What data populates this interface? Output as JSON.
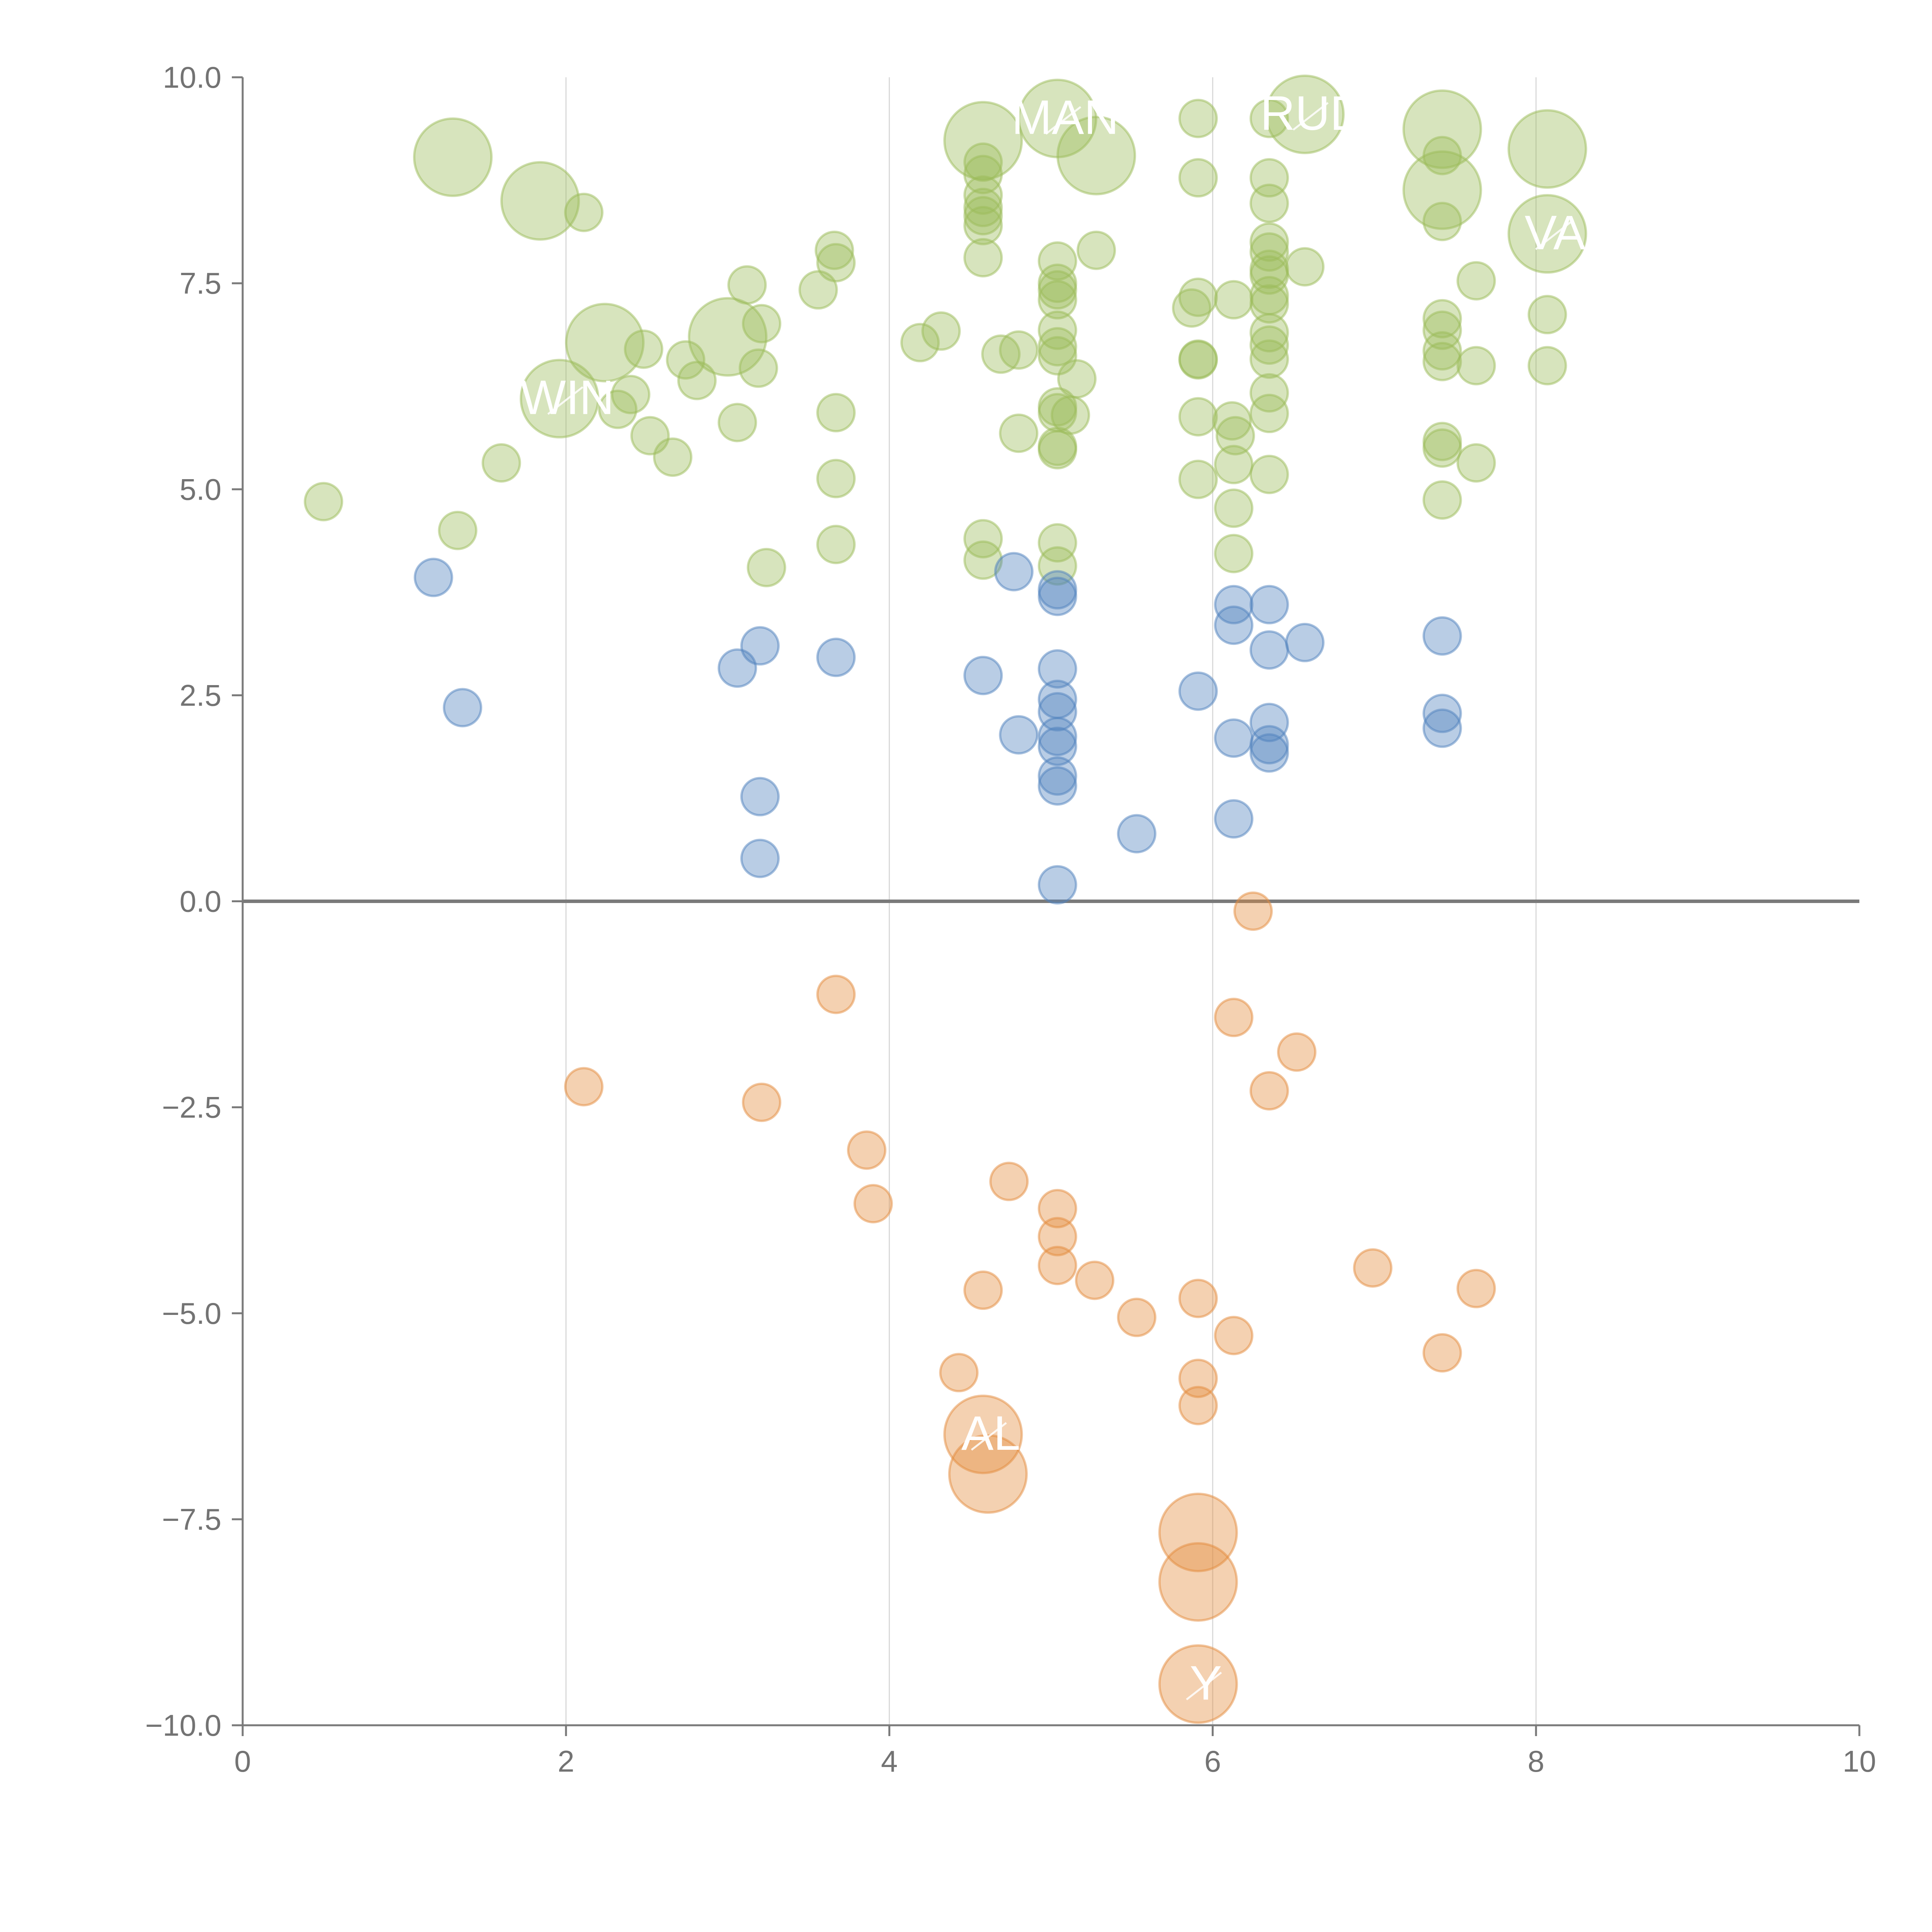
{
  "chart_data": {
    "type": "scatter",
    "title": "",
    "xlabel": "",
    "ylabel": "",
    "xlim": [
      0,
      10
    ],
    "ylim": [
      -10,
      10
    ],
    "x_ticks": [
      0,
      2,
      4,
      6,
      8,
      10
    ],
    "x_tick_labels": [
      "0",
      "2",
      "4",
      "6",
      "8",
      "10"
    ],
    "y_ticks": [
      -10,
      -7.5,
      -5,
      -2.5,
      0,
      2.5,
      5,
      7.5,
      10
    ],
    "y_tick_labels": [
      "−10.0",
      "−7.5",
      "−5.0",
      "−2.5",
      "0.0",
      "2.5",
      "5.0",
      "7.5",
      "10.0"
    ],
    "vertical_grid_at": [
      2,
      4,
      6,
      8
    ],
    "zero_line": true,
    "colors": {
      "green": "#9bbb59",
      "blue": "#4f81bd",
      "orange": "#e48b3d",
      "axis": "#7a7a7a",
      "grid": "#d9d9d9",
      "label": "#ffffff"
    },
    "series": [
      {
        "name": "green",
        "color": "#9bbb59",
        "points": [
          [
            0.5,
            4.85,
            1
          ],
          [
            1.33,
            4.5,
            1
          ],
          [
            1.6,
            5.32,
            1
          ],
          [
            1.3,
            9.03,
            2
          ],
          [
            1.84,
            8.5,
            2
          ],
          [
            2.11,
            8.36,
            1
          ],
          [
            2.24,
            6.78,
            2
          ],
          [
            1.96,
            6.1,
            2
          ],
          [
            2.32,
            5.97,
            1
          ],
          [
            2.4,
            6.15,
            1
          ],
          [
            2.48,
            6.7,
            1
          ],
          [
            2.52,
            5.65,
            1
          ],
          [
            2.66,
            5.39,
            1
          ],
          [
            2.74,
            6.57,
            1
          ],
          [
            2.81,
            6.32,
            1
          ],
          [
            3.0,
            6.85,
            2
          ],
          [
            3.06,
            5.81,
            1
          ],
          [
            3.12,
            7.48,
            1
          ],
          [
            3.19,
            6.47,
            1
          ],
          [
            3.21,
            7.01,
            1
          ],
          [
            3.24,
            4.05,
            1
          ],
          [
            3.56,
            7.42,
            1
          ],
          [
            3.66,
            7.9,
            1
          ],
          [
            3.67,
            7.75,
            1
          ],
          [
            3.67,
            5.93,
            1
          ],
          [
            3.67,
            5.13,
            1
          ],
          [
            3.67,
            4.33,
            1
          ],
          [
            4.19,
            6.78,
            1
          ],
          [
            4.32,
            6.92,
            1
          ],
          [
            4.58,
            9.23,
            2
          ],
          [
            4.58,
            8.97,
            1
          ],
          [
            4.58,
            8.82,
            1
          ],
          [
            4.58,
            8.57,
            1
          ],
          [
            4.58,
            8.42,
            1
          ],
          [
            4.58,
            8.32,
            1
          ],
          [
            4.58,
            8.2,
            1
          ],
          [
            4.58,
            7.81,
            1
          ],
          [
            4.58,
            4.4,
            1
          ],
          [
            4.58,
            4.14,
            1
          ],
          [
            4.69,
            6.64,
            1
          ],
          [
            4.8,
            6.69,
            1
          ],
          [
            4.8,
            5.68,
            1
          ],
          [
            5.04,
            9.5,
            2
          ],
          [
            5.28,
            9.05,
            2
          ],
          [
            5.04,
            7.77,
            1
          ],
          [
            5.04,
            7.5,
            1
          ],
          [
            5.04,
            7.42,
            1
          ],
          [
            5.04,
            7.3,
            1
          ],
          [
            5.04,
            6.93,
            1
          ],
          [
            5.04,
            6.73,
            1
          ],
          [
            5.04,
            6.62,
            1
          ],
          [
            5.04,
            6.0,
            1
          ],
          [
            5.04,
            5.93,
            1
          ],
          [
            5.12,
            5.9,
            1
          ],
          [
            5.04,
            5.52,
            1
          ],
          [
            5.04,
            5.48,
            1
          ],
          [
            5.16,
            6.34,
            1
          ],
          [
            5.28,
            7.9,
            1
          ],
          [
            5.04,
            4.35,
            1
          ],
          [
            5.04,
            4.07,
            1
          ],
          [
            5.91,
            9.5,
            1
          ],
          [
            5.91,
            8.78,
            1
          ],
          [
            5.91,
            7.33,
            1
          ],
          [
            5.87,
            7.2,
            1
          ],
          [
            5.91,
            6.58,
            1
          ],
          [
            5.91,
            6.57,
            1
          ],
          [
            5.91,
            5.88,
            1
          ],
          [
            5.91,
            5.12,
            1
          ],
          [
            6.13,
            7.3,
            1
          ],
          [
            6.12,
            5.83,
            1
          ],
          [
            6.14,
            5.65,
            1
          ],
          [
            6.13,
            5.3,
            1
          ],
          [
            6.13,
            4.77,
            1
          ],
          [
            6.13,
            4.22,
            1
          ],
          [
            6.35,
            9.5,
            1
          ],
          [
            6.35,
            8.78,
            1
          ],
          [
            6.35,
            8.47,
            1
          ],
          [
            6.35,
            8.0,
            1
          ],
          [
            6.35,
            7.88,
            1
          ],
          [
            6.35,
            7.67,
            1
          ],
          [
            6.35,
            7.6,
            1
          ],
          [
            6.35,
            7.35,
            1
          ],
          [
            6.35,
            7.25,
            1
          ],
          [
            6.35,
            6.9,
            1
          ],
          [
            6.35,
            6.75,
            1
          ],
          [
            6.35,
            6.58,
            1
          ],
          [
            6.35,
            6.17,
            1
          ],
          [
            6.35,
            5.92,
            1
          ],
          [
            6.35,
            5.18,
            1
          ],
          [
            6.57,
            9.55,
            2
          ],
          [
            6.57,
            7.7,
            1
          ],
          [
            7.42,
            9.37,
            2
          ],
          [
            7.42,
            8.63,
            2
          ],
          [
            7.42,
            9.05,
            1
          ],
          [
            7.42,
            8.25,
            1
          ],
          [
            7.42,
            7.07,
            1
          ],
          [
            7.42,
            6.93,
            1
          ],
          [
            7.42,
            6.68,
            1
          ],
          [
            7.42,
            6.55,
            1
          ],
          [
            7.42,
            5.58,
            1
          ],
          [
            7.42,
            5.5,
            1
          ],
          [
            7.42,
            4.87,
            1
          ],
          [
            7.63,
            7.53,
            1
          ],
          [
            7.63,
            6.5,
            1
          ],
          [
            7.63,
            5.32,
            1
          ],
          [
            8.07,
            9.13,
            2
          ],
          [
            8.07,
            8.1,
            2
          ],
          [
            8.07,
            7.12,
            1
          ],
          [
            8.07,
            6.5,
            1
          ]
        ]
      },
      {
        "name": "blue",
        "color": "#4f81bd",
        "points": [
          [
            1.18,
            3.93,
            1
          ],
          [
            1.36,
            2.35,
            1
          ],
          [
            3.06,
            2.83,
            1
          ],
          [
            3.2,
            3.1,
            1
          ],
          [
            3.2,
            1.27,
            1
          ],
          [
            3.2,
            0.52,
            1
          ],
          [
            3.67,
            2.96,
            1
          ],
          [
            4.58,
            2.74,
            1
          ],
          [
            4.77,
            4.0,
            1
          ],
          [
            4.8,
            2.02,
            1
          ],
          [
            5.04,
            3.78,
            1
          ],
          [
            5.04,
            3.7,
            1
          ],
          [
            5.04,
            2.82,
            1
          ],
          [
            5.04,
            2.45,
            1
          ],
          [
            5.04,
            2.3,
            1
          ],
          [
            5.04,
            2.0,
            1
          ],
          [
            5.04,
            1.88,
            1
          ],
          [
            5.04,
            1.52,
            1
          ],
          [
            5.04,
            1.4,
            1
          ],
          [
            5.04,
            0.2,
            1
          ],
          [
            5.53,
            0.82,
            1
          ],
          [
            5.91,
            2.55,
            1
          ],
          [
            6.13,
            3.6,
            1
          ],
          [
            6.13,
            3.35,
            1
          ],
          [
            6.13,
            1.98,
            1
          ],
          [
            6.13,
            1.0,
            1
          ],
          [
            6.35,
            3.6,
            1
          ],
          [
            6.35,
            3.05,
            1
          ],
          [
            6.35,
            2.17,
            1
          ],
          [
            6.35,
            1.9,
            1
          ],
          [
            6.35,
            1.8,
            1
          ],
          [
            6.57,
            3.14,
            1
          ],
          [
            7.42,
            3.22,
            1
          ],
          [
            7.42,
            2.28,
            1
          ],
          [
            7.42,
            2.1,
            1
          ]
        ]
      },
      {
        "name": "orange",
        "color": "#e48b3d",
        "points": [
          [
            2.11,
            -2.25,
            1
          ],
          [
            3.21,
            -2.44,
            1
          ],
          [
            3.67,
            -1.13,
            1
          ],
          [
            3.86,
            -3.02,
            1
          ],
          [
            3.9,
            -3.67,
            1
          ],
          [
            4.43,
            -5.72,
            1
          ],
          [
            4.58,
            -4.72,
            1
          ],
          [
            4.74,
            -3.4,
            1
          ],
          [
            4.58,
            -6.47,
            2
          ],
          [
            4.61,
            -6.95,
            2
          ],
          [
            5.04,
            -3.73,
            1
          ],
          [
            5.04,
            -4.07,
            1
          ],
          [
            5.04,
            -4.42,
            1
          ],
          [
            5.27,
            -4.6,
            1
          ],
          [
            5.53,
            -5.05,
            1
          ],
          [
            5.91,
            -4.82,
            1
          ],
          [
            5.91,
            -5.79,
            1
          ],
          [
            5.91,
            -6.12,
            1
          ],
          [
            5.91,
            -7.66,
            2
          ],
          [
            5.91,
            -8.26,
            2
          ],
          [
            5.91,
            -9.5,
            2
          ],
          [
            6.13,
            -5.27,
            1
          ],
          [
            6.13,
            -1.41,
            1
          ],
          [
            6.25,
            -0.12,
            1
          ],
          [
            6.35,
            -2.3,
            1
          ],
          [
            6.52,
            -1.83,
            1
          ],
          [
            6.99,
            -4.45,
            1
          ],
          [
            7.42,
            -5.48,
            1
          ],
          [
            7.63,
            -4.7,
            1
          ]
        ]
      }
    ],
    "annotations": [
      {
        "text": "WIN",
        "point": [
          1.96,
          6.1
        ]
      },
      {
        "text": "MAN",
        "point": [
          5.04,
          9.5
        ]
      },
      {
        "text": "RUD",
        "point": [
          6.57,
          9.55
        ]
      },
      {
        "text": "VA",
        "point": [
          8.07,
          8.1
        ]
      },
      {
        "text": "AL",
        "point": [
          4.58,
          -6.47
        ]
      },
      {
        "text": "Y",
        "point": [
          5.91,
          -9.5
        ]
      }
    ]
  }
}
